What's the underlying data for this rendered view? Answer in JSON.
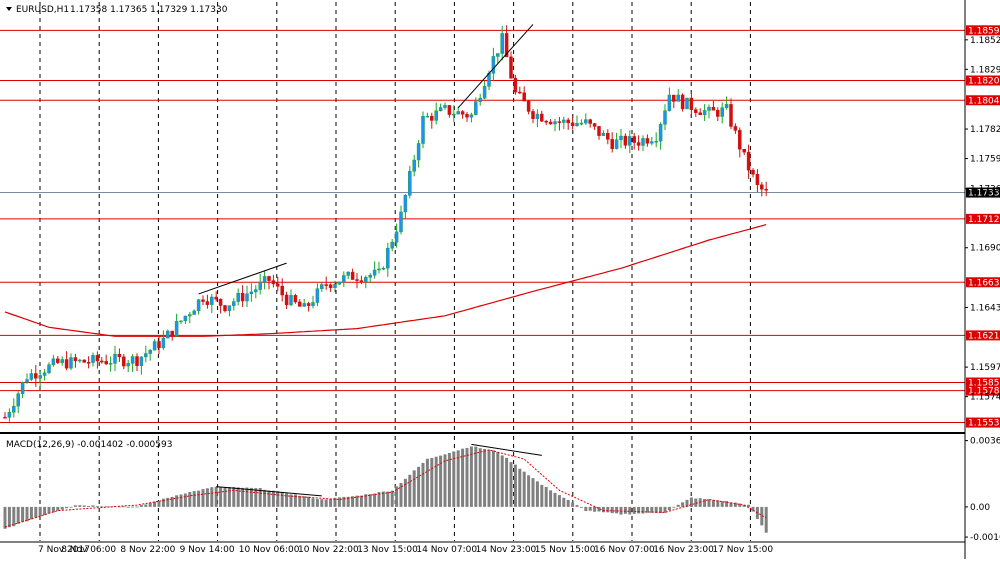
{
  "colors": {
    "background": "#ffffff",
    "grid": "#000000",
    "bull": "#18a52e",
    "bear": "#d01010",
    "body_bull": "#1e8fff",
    "support_line": "#dd0000",
    "current_tag": "#000000",
    "macd_hist": "#808080",
    "macd_signal": "#e00000"
  },
  "header": {
    "symbol_label": "EURUSD,H1",
    "ohlc_text": "1.17358 1.17365 1.17329 1.17330",
    "menu_icon": "triangle-down-icon"
  },
  "chart_data": [
    {
      "type": "candlestick",
      "title": "EURUSD,H1",
      "timeframe": "H1",
      "ylim": [
        1.1548,
        1.1869
      ],
      "y_ticks": [
        "1.18520",
        "1.18290",
        "1.17825",
        "1.17595",
        "1.17360",
        "1.16900",
        "1.16435",
        "1.15970",
        "1.15740"
      ],
      "x_tick_labels": [
        "7 Nov 2017",
        "8 Nov 06:00",
        "8 Nov 22:00",
        "9 Nov 14:00",
        "10 Nov 06:00",
        "10 Nov 22:00",
        "13 Nov 15:00",
        "14 Nov 07:00",
        "14 Nov 23:00",
        "15 Nov 15:00",
        "16 Nov 07:00",
        "16 Nov 23:00",
        "17 Nov 15:00"
      ],
      "current_price": "1.17330",
      "horizontal_levels": [
        "1.18594",
        "1.18203",
        "1.18049",
        "1.17125",
        "1.16631",
        "1.16217",
        "1.15850",
        "1.15787",
        "1.15538"
      ],
      "close_anchors": [
        {
          "bar": 0,
          "price": 1.1558
        },
        {
          "bar": 5,
          "price": 1.159
        },
        {
          "bar": 12,
          "price": 1.16
        },
        {
          "bar": 22,
          "price": 1.1602
        },
        {
          "bar": 30,
          "price": 1.1603
        },
        {
          "bar": 36,
          "price": 1.1618
        },
        {
          "bar": 45,
          "price": 1.1652
        },
        {
          "bar": 50,
          "price": 1.1645
        },
        {
          "bar": 56,
          "price": 1.1656
        },
        {
          "bar": 60,
          "price": 1.1665
        },
        {
          "bar": 64,
          "price": 1.165
        },
        {
          "bar": 68,
          "price": 1.1642
        },
        {
          "bar": 73,
          "price": 1.1662
        },
        {
          "bar": 79,
          "price": 1.1668
        },
        {
          "bar": 85,
          "price": 1.1669
        },
        {
          "bar": 90,
          "price": 1.1715
        },
        {
          "bar": 95,
          "price": 1.179
        },
        {
          "bar": 100,
          "price": 1.1797
        },
        {
          "bar": 106,
          "price": 1.1793
        },
        {
          "bar": 110,
          "price": 1.183
        },
        {
          "bar": 113,
          "price": 1.1852
        },
        {
          "bar": 116,
          "price": 1.181
        },
        {
          "bar": 120,
          "price": 1.1795
        },
        {
          "bar": 126,
          "price": 1.1788
        },
        {
          "bar": 132,
          "price": 1.1787
        },
        {
          "bar": 138,
          "price": 1.1772
        },
        {
          "bar": 144,
          "price": 1.1773
        },
        {
          "bar": 148,
          "price": 1.1778
        },
        {
          "bar": 151,
          "price": 1.181
        },
        {
          "bar": 154,
          "price": 1.1803
        },
        {
          "bar": 160,
          "price": 1.1795
        },
        {
          "bar": 164,
          "price": 1.1797
        },
        {
          "bar": 168,
          "price": 1.176
        },
        {
          "bar": 171,
          "price": 1.1737
        },
        {
          "bar": 173,
          "price": 1.1733
        }
      ],
      "moving_average": [
        {
          "bar": 0,
          "price": 1.164
        },
        {
          "bar": 10,
          "price": 1.1628
        },
        {
          "bar": 25,
          "price": 1.1621
        },
        {
          "bar": 45,
          "price": 1.1621
        },
        {
          "bar": 60,
          "price": 1.1623
        },
        {
          "bar": 80,
          "price": 1.1627
        },
        {
          "bar": 100,
          "price": 1.1637
        },
        {
          "bar": 120,
          "price": 1.1656
        },
        {
          "bar": 140,
          "price": 1.1674
        },
        {
          "bar": 160,
          "price": 1.1696
        },
        {
          "bar": 173,
          "price": 1.1708
        }
      ],
      "trendlines": [
        {
          "from": {
            "bar": 44,
            "price": 1.1654
          },
          "to": {
            "bar": 64,
            "price": 1.1678
          }
        },
        {
          "from": {
            "bar": 103,
            "price": 1.1799
          },
          "to": {
            "bar": 120,
            "price": 1.1864
          }
        }
      ]
    },
    {
      "type": "histogram",
      "title": "MACD(12,26,9) -0.001402 -0.000593",
      "indicator": "MACD",
      "ylim": [
        -0.0018,
        0.0038
      ],
      "y_ticks": [
        "0.003604",
        "0.00",
        "-0.001641"
      ],
      "hist_anchors": [
        {
          "bar": 0,
          "value": -0.0012
        },
        {
          "bar": 8,
          "value": -0.0005
        },
        {
          "bar": 16,
          "value": 0.0001
        },
        {
          "bar": 30,
          "value": 0.0
        },
        {
          "bar": 40,
          "value": 0.0007
        },
        {
          "bar": 48,
          "value": 0.0011
        },
        {
          "bar": 58,
          "value": 0.001
        },
        {
          "bar": 72,
          "value": 0.0004
        },
        {
          "bar": 80,
          "value": 0.0006
        },
        {
          "bar": 88,
          "value": 0.0009
        },
        {
          "bar": 96,
          "value": 0.0026
        },
        {
          "bar": 106,
          "value": 0.0033
        },
        {
          "bar": 112,
          "value": 0.003
        },
        {
          "bar": 122,
          "value": 0.0012
        },
        {
          "bar": 132,
          "value": -0.0002
        },
        {
          "bar": 140,
          "value": -0.0004
        },
        {
          "bar": 150,
          "value": -0.0003
        },
        {
          "bar": 156,
          "value": 0.0005
        },
        {
          "bar": 164,
          "value": 0.0003
        },
        {
          "bar": 169,
          "value": 0.0001
        },
        {
          "bar": 173,
          "value": -0.0014
        }
      ],
      "signal_anchors": [
        {
          "bar": 0,
          "value": -0.0011
        },
        {
          "bar": 12,
          "value": -0.0002
        },
        {
          "bar": 30,
          "value": 0.0001
        },
        {
          "bar": 42,
          "value": 0.0006
        },
        {
          "bar": 52,
          "value": 0.0009
        },
        {
          "bar": 64,
          "value": 0.0006
        },
        {
          "bar": 76,
          "value": 0.0004
        },
        {
          "bar": 88,
          "value": 0.0008
        },
        {
          "bar": 100,
          "value": 0.0025
        },
        {
          "bar": 110,
          "value": 0.0031
        },
        {
          "bar": 118,
          "value": 0.0026
        },
        {
          "bar": 126,
          "value": 0.0009
        },
        {
          "bar": 136,
          "value": -0.0002
        },
        {
          "bar": 150,
          "value": -0.0003
        },
        {
          "bar": 160,
          "value": 0.0004
        },
        {
          "bar": 168,
          "value": 0.0001
        },
        {
          "bar": 173,
          "value": -0.0006
        }
      ],
      "trendlines": [
        {
          "from": {
            "bar": 48,
            "value": 0.0011
          },
          "to": {
            "bar": 72,
            "value": 0.0006
          }
        },
        {
          "from": {
            "bar": 106,
            "value": 0.0034
          },
          "to": {
            "bar": 122,
            "value": 0.0028
          }
        }
      ]
    }
  ]
}
